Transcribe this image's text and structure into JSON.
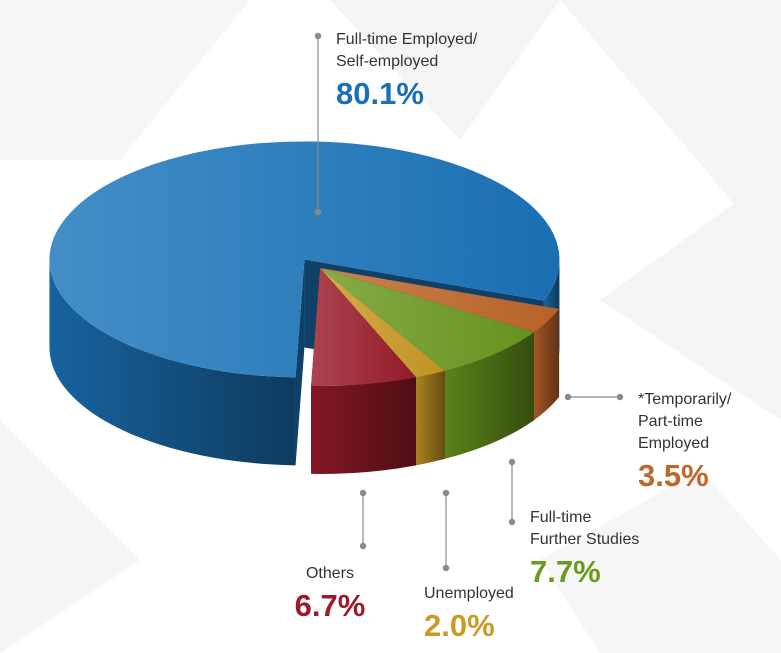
{
  "chart_data": {
    "type": "pie",
    "style": "3d-exploded",
    "slices": [
      {
        "name": "Full-time Employed/ Self-employed",
        "label_lines": [
          "Full-time Employed/",
          "Self-employed"
        ],
        "value": 80.1,
        "display": "80.1%",
        "color": "#1b75bb"
      },
      {
        "name": "*Temporarily/ Part-time Employed",
        "label_lines": [
          "*Temporarily/",
          "Part-time",
          "Employed"
        ],
        "value": 3.5,
        "display": "3.5%",
        "color": "#c0662a"
      },
      {
        "name": "Full-time Further Studies",
        "label_lines": [
          "Full-time",
          "Further Studies"
        ],
        "value": 7.7,
        "display": "7.7%",
        "color": "#6a9a1e"
      },
      {
        "name": "Unemployed",
        "label_lines": [
          "Unemployed"
        ],
        "value": 2.0,
        "display": "2.0%",
        "color": "#c99a24"
      },
      {
        "name": "Others",
        "label_lines": [
          "Others"
        ],
        "value": 6.7,
        "display": "6.7%",
        "color": "#9b1b2a"
      }
    ]
  }
}
